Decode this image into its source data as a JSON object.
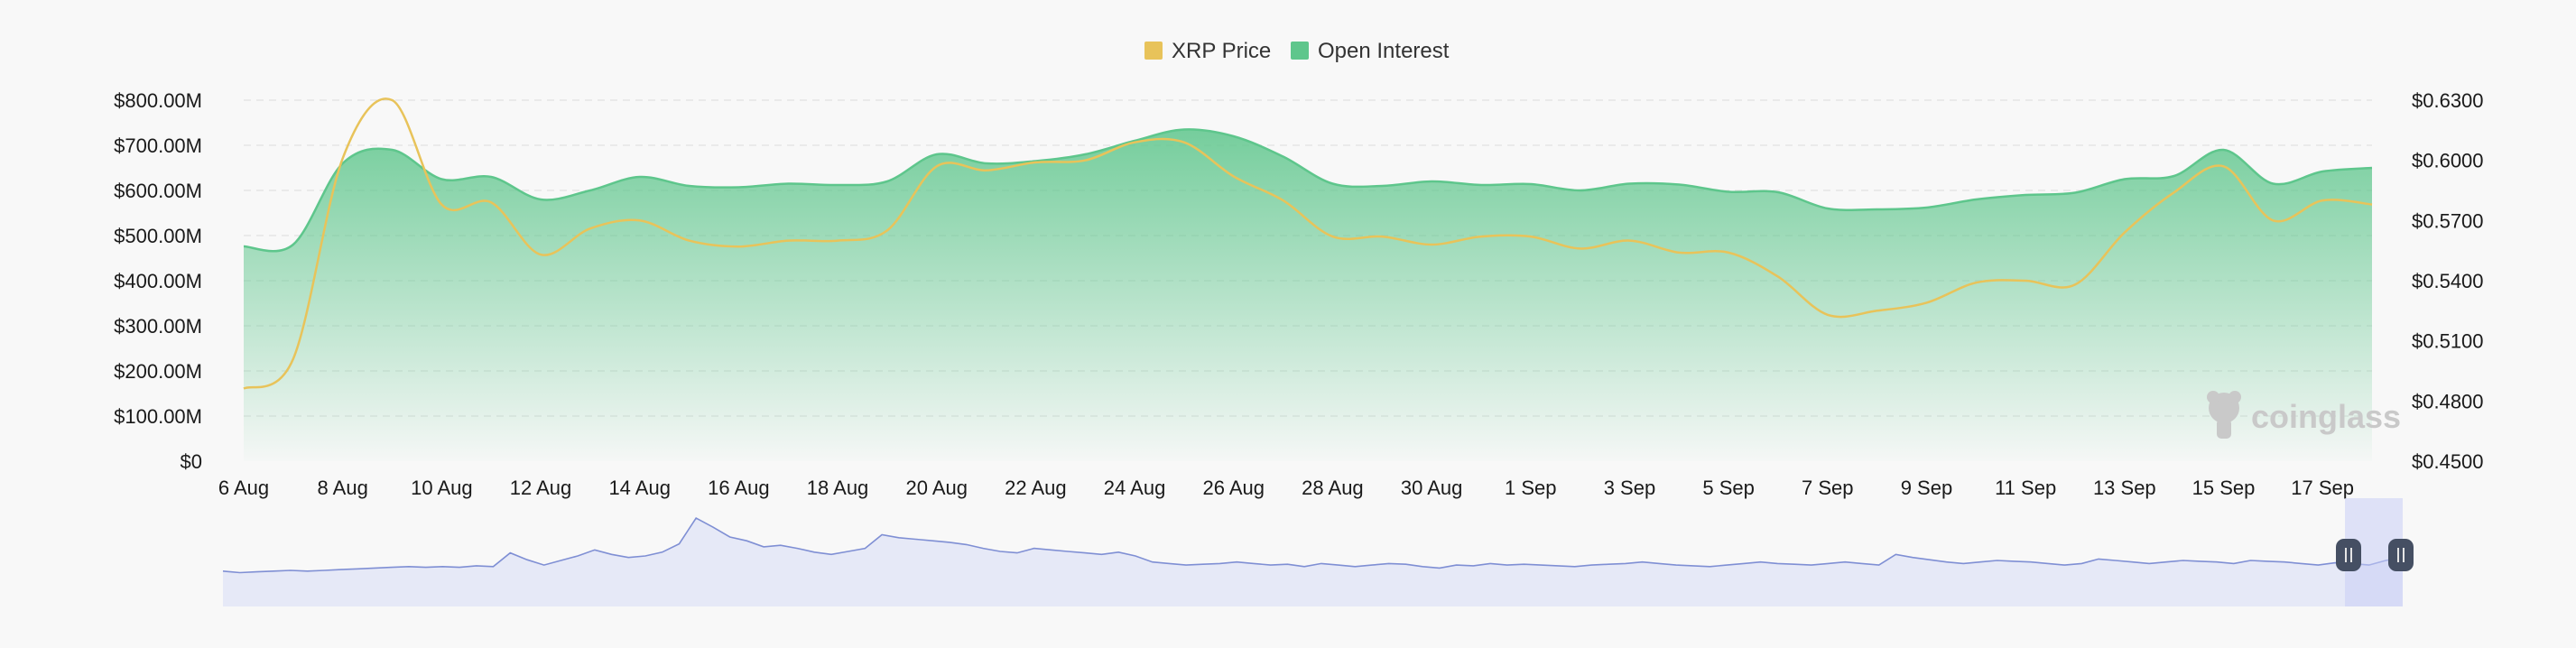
{
  "chart_data": {
    "type": "area",
    "legend_position": "top-center",
    "grid": true,
    "x": [
      "6 Aug",
      "7 Aug",
      "8 Aug",
      "9 Aug",
      "10 Aug",
      "11 Aug",
      "12 Aug",
      "13 Aug",
      "14 Aug",
      "15 Aug",
      "16 Aug",
      "17 Aug",
      "18 Aug",
      "19 Aug",
      "20 Aug",
      "21 Aug",
      "22 Aug",
      "23 Aug",
      "24 Aug",
      "25 Aug",
      "26 Aug",
      "27 Aug",
      "28 Aug",
      "29 Aug",
      "30 Aug",
      "31 Aug",
      "1 Sep",
      "2 Sep",
      "3 Sep",
      "4 Sep",
      "5 Sep",
      "6 Sep",
      "7 Sep",
      "8 Sep",
      "9 Sep",
      "10 Sep",
      "11 Sep",
      "12 Sep",
      "13 Sep",
      "14 Sep",
      "15 Sep",
      "16 Sep",
      "17 Sep",
      "18 Sep"
    ],
    "x_tick_labels": [
      "6 Aug",
      "8 Aug",
      "10 Aug",
      "12 Aug",
      "14 Aug",
      "16 Aug",
      "18 Aug",
      "20 Aug",
      "22 Aug",
      "24 Aug",
      "26 Aug",
      "28 Aug",
      "30 Aug",
      "1 Sep",
      "3 Sep",
      "5 Sep",
      "7 Sep",
      "9 Sep",
      "11 Sep",
      "13 Sep",
      "15 Sep",
      "17 Sep"
    ],
    "y_left": {
      "ylim": [
        0,
        800000000
      ],
      "tick_labels": [
        "$0",
        "$100.00M",
        "$200.00M",
        "$300.00M",
        "$400.00M",
        "$500.00M",
        "$600.00M",
        "$700.00M",
        "$800.00M"
      ]
    },
    "y_right": {
      "ylim": [
        0.45,
        0.63
      ],
      "tick_labels": [
        "$0.4500",
        "$0.4800",
        "$0.5100",
        "$0.5400",
        "$0.5700",
        "$0.6000",
        "$0.6300"
      ]
    },
    "series": [
      {
        "name": "XRP Price",
        "axis": "right",
        "color": "#e8c35a",
        "values": [
          0.4862,
          0.501,
          0.601,
          0.63,
          0.578,
          0.579,
          0.553,
          0.566,
          0.57,
          0.56,
          0.557,
          0.56,
          0.56,
          0.565,
          0.597,
          0.595,
          0.599,
          0.6,
          0.609,
          0.609,
          0.592,
          0.58,
          0.562,
          0.562,
          0.558,
          0.562,
          0.562,
          0.556,
          0.56,
          0.554,
          0.554,
          0.542,
          0.523,
          0.525,
          0.529,
          0.539,
          0.54,
          0.538,
          0.564,
          0.584,
          0.597,
          0.57,
          0.58,
          0.578
        ]
      },
      {
        "name": "Open Interest",
        "axis": "left",
        "color": "#5ec68c",
        "values": [
          476000000,
          480000000,
          660000000,
          690000000,
          625000000,
          630000000,
          580000000,
          600000000,
          630000000,
          610000000,
          607000000,
          615000000,
          612000000,
          620000000,
          680000000,
          660000000,
          665000000,
          680000000,
          710000000,
          735000000,
          720000000,
          675000000,
          615000000,
          610000000,
          620000000,
          612000000,
          614000000,
          600000000,
          615000000,
          613000000,
          597000000,
          596000000,
          560000000,
          558000000,
          562000000,
          580000000,
          590000000,
          595000000,
          625000000,
          632000000,
          690000000,
          615000000,
          642000000,
          650000000
        ]
      }
    ],
    "navigator": {
      "color": "#7f8fd4",
      "values": [
        0.3,
        0.28,
        0.29,
        0.3,
        0.31,
        0.3,
        0.31,
        0.32,
        0.33,
        0.34,
        0.35,
        0.36,
        0.35,
        0.36,
        0.35,
        0.37,
        0.36,
        0.54,
        0.45,
        0.38,
        0.44,
        0.5,
        0.58,
        0.52,
        0.48,
        0.5,
        0.55,
        0.66,
        1.0,
        0.88,
        0.75,
        0.7,
        0.62,
        0.64,
        0.6,
        0.55,
        0.52,
        0.56,
        0.6,
        0.78,
        0.74,
        0.72,
        0.7,
        0.68,
        0.65,
        0.6,
        0.56,
        0.54,
        0.6,
        0.58,
        0.56,
        0.54,
        0.52,
        0.55,
        0.5,
        0.42,
        0.4,
        0.38,
        0.39,
        0.4,
        0.42,
        0.4,
        0.38,
        0.39,
        0.36,
        0.4,
        0.38,
        0.36,
        0.38,
        0.4,
        0.39,
        0.36,
        0.34,
        0.38,
        0.37,
        0.4,
        0.38,
        0.39,
        0.38,
        0.37,
        0.36,
        0.38,
        0.39,
        0.4,
        0.42,
        0.4,
        0.38,
        0.37,
        0.36,
        0.38,
        0.4,
        0.42,
        0.4,
        0.39,
        0.38,
        0.4,
        0.42,
        0.4,
        0.38,
        0.52,
        0.48,
        0.45,
        0.42,
        0.4,
        0.42,
        0.44,
        0.43,
        0.42,
        0.4,
        0.38,
        0.4,
        0.46,
        0.44,
        0.42,
        0.4,
        0.42,
        0.44,
        0.43,
        0.42,
        0.4,
        0.44,
        0.43,
        0.42,
        0.4,
        0.38,
        0.41,
        0.4,
        0.38,
        0.44,
        0.48
      ]
    },
    "watermark": "coinglass"
  }
}
